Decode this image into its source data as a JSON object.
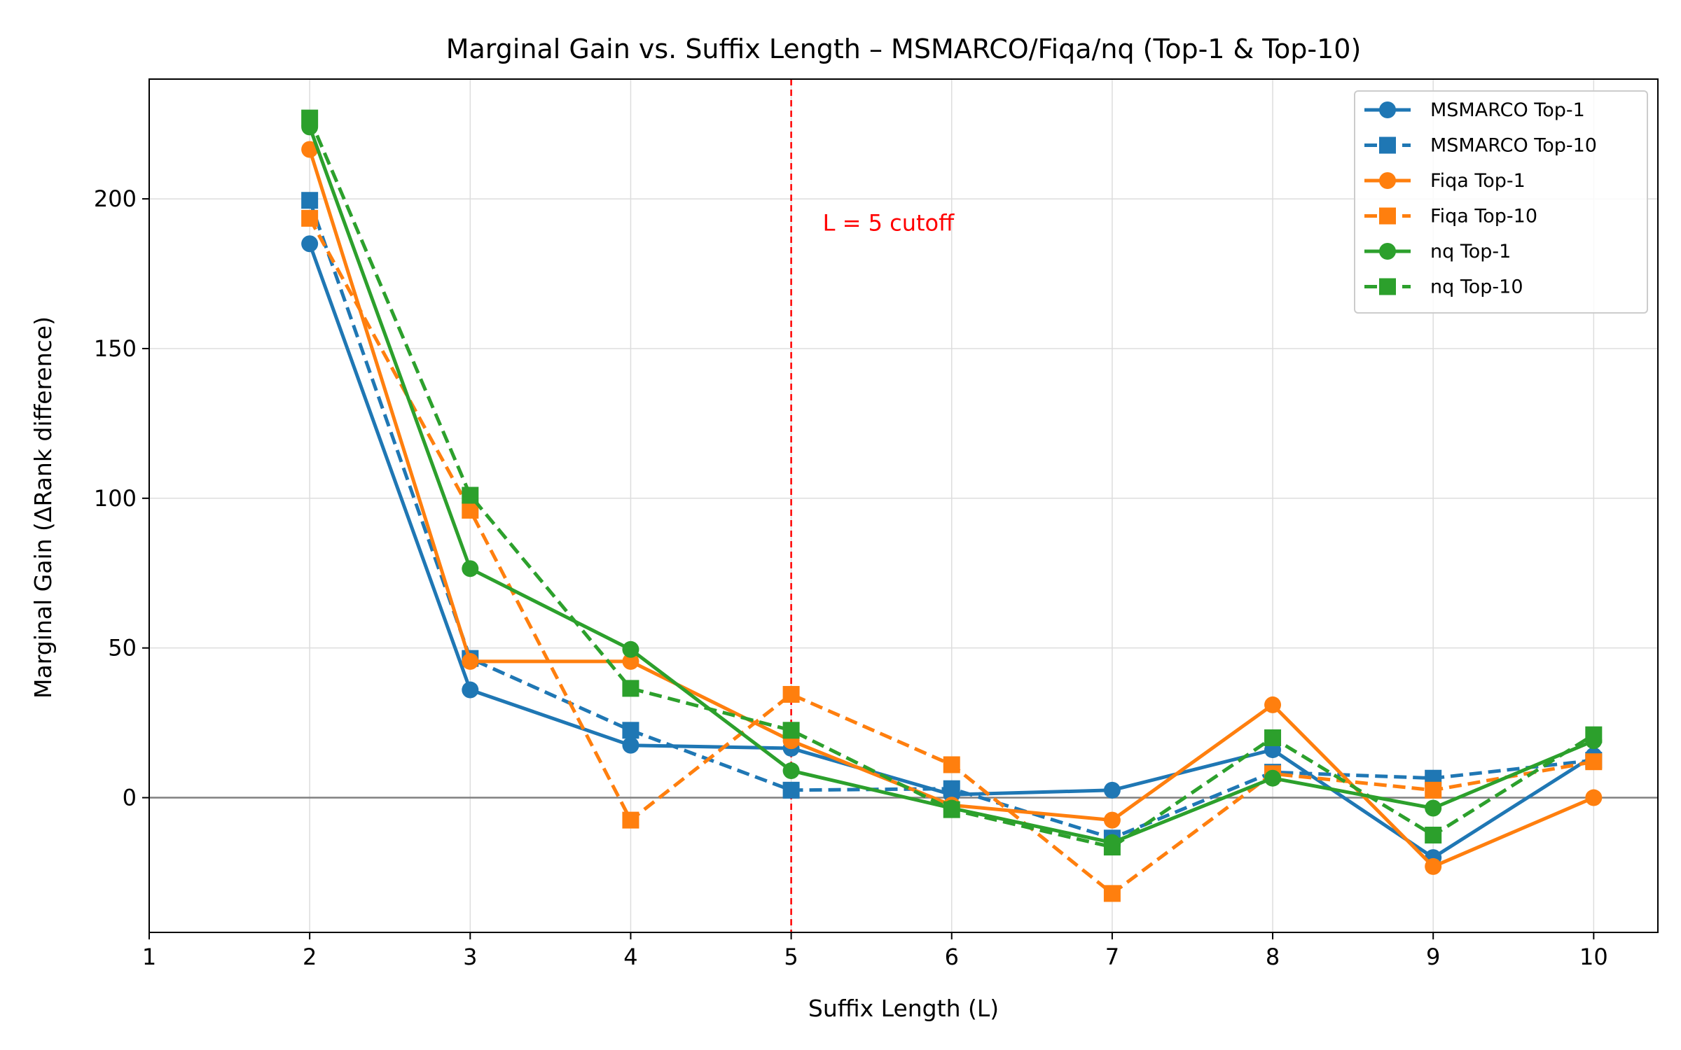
{
  "chart_data": {
    "type": "line",
    "title": "Marginal Gain vs. Suffix Length – MSMARCO/Fiqa/nq (Top-1 & Top-10)",
    "xlabel": "Suffix Length (L)",
    "ylabel": "Marginal Gain (ΔRank difference)",
    "xlim": [
      1,
      10.4
    ],
    "ylim": [
      -45,
      240
    ],
    "x_ticks": [
      1,
      2,
      3,
      4,
      5,
      6,
      7,
      8,
      9,
      10
    ],
    "y_ticks": [
      0,
      50,
      100,
      150,
      200
    ],
    "grid": true,
    "legend_position": "top-right",
    "x": [
      2,
      3,
      4,
      5,
      6,
      7,
      8,
      9,
      10
    ],
    "series": [
      {
        "name": "MSMARCO Top-1",
        "color": "#1f77b4",
        "dash": "solid",
        "marker": "circle",
        "values": [
          185,
          36,
          17.5,
          16.5,
          1,
          2.5,
          16,
          -20,
          14
        ]
      },
      {
        "name": "MSMARCO Top-10",
        "color": "#1f77b4",
        "dash": "dashed",
        "marker": "square",
        "values": [
          199.5,
          46.5,
          22.5,
          2.5,
          3,
          -13.5,
          8.5,
          6.5,
          12.5
        ]
      },
      {
        "name": "Fiqa Top-1",
        "color": "#ff7f0e",
        "dash": "solid",
        "marker": "circle",
        "values": [
          216.5,
          45.5,
          45.5,
          19,
          -2.5,
          -7.5,
          31,
          -23,
          0
        ]
      },
      {
        "name": "Fiqa Top-10",
        "color": "#ff7f0e",
        "dash": "dashed",
        "marker": "square",
        "values": [
          193.5,
          96,
          -7.5,
          34.5,
          11,
          -32,
          8,
          2.5,
          12
        ]
      },
      {
        "name": "nq Top-1",
        "color": "#2ca02c",
        "dash": "solid",
        "marker": "circle",
        "values": [
          224,
          76.5,
          49.5,
          9,
          -3.5,
          -15,
          6.5,
          -3.5,
          19
        ]
      },
      {
        "name": "nq Top-10",
        "color": "#2ca02c",
        "dash": "dashed",
        "marker": "square",
        "values": [
          227,
          101,
          36.5,
          22.5,
          -4,
          -16.5,
          20,
          -12.5,
          21
        ]
      }
    ],
    "reference_lines": [
      {
        "orientation": "vertical",
        "value": 5,
        "color": "#ff0000",
        "dash": "dashed",
        "label": "L = 5 cutoff",
        "label_y": 192
      },
      {
        "orientation": "horizontal",
        "value": 0,
        "color": "#808080",
        "dash": "solid"
      }
    ]
  }
}
